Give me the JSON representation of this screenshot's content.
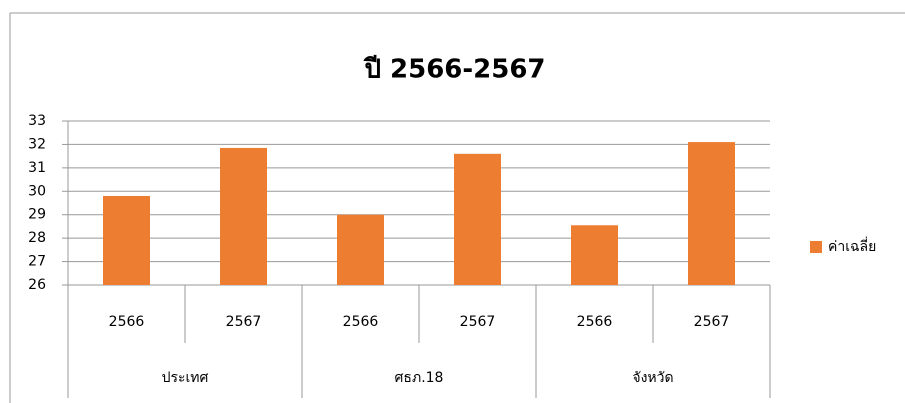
{
  "chart_data": {
    "type": "bar",
    "title": "ปี 2566-2567",
    "categories": [
      "2566",
      "2567",
      "2566",
      "2567",
      "2566",
      "2567"
    ],
    "groups": [
      "ประเทศ",
      "ศธภ.18",
      "จังหวัด"
    ],
    "series": [
      {
        "name": "ค่าเฉลี่ย",
        "color": "#ed7d31",
        "values": [
          29.8,
          31.85,
          29.0,
          31.6,
          28.55,
          32.1
        ]
      }
    ],
    "ylim": [
      26,
      33
    ],
    "yticks": [
      26,
      27,
      28,
      29,
      30,
      31,
      32,
      33
    ],
    "grid": true,
    "legend": "right"
  }
}
